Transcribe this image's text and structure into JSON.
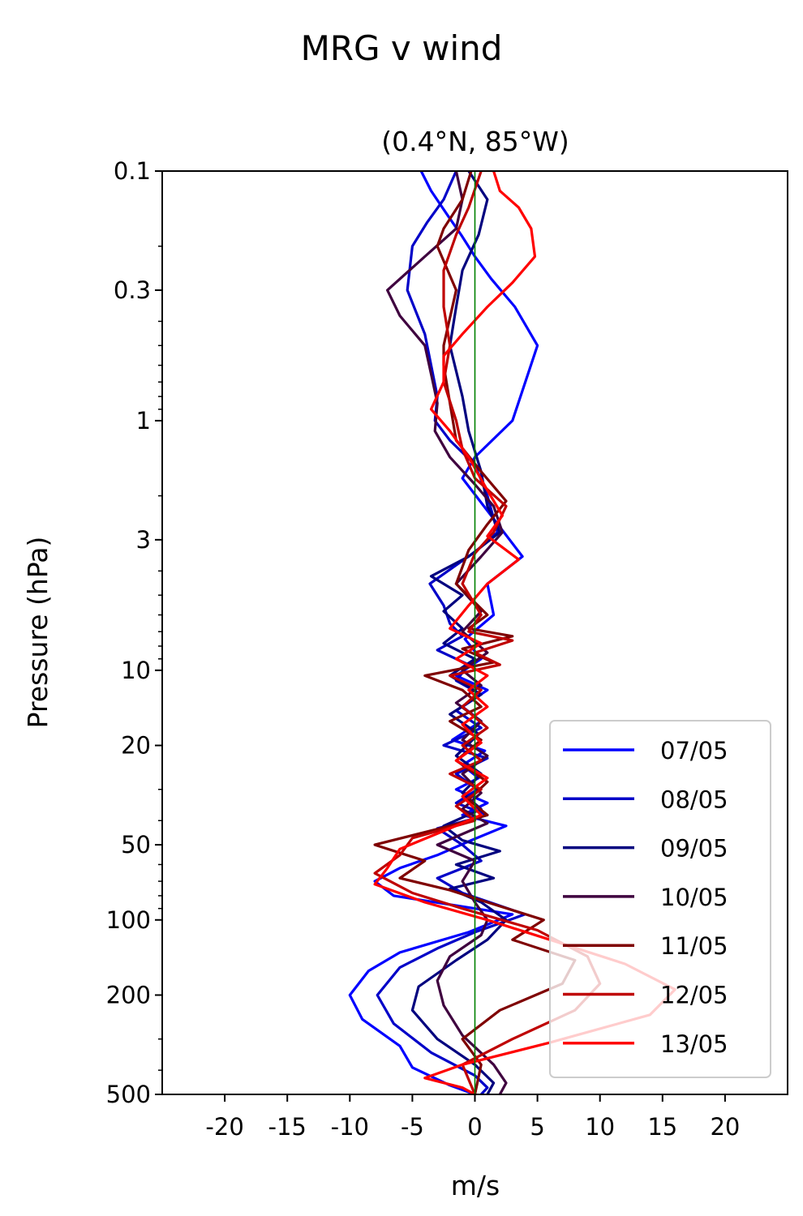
{
  "chart_data": {
    "type": "line",
    "title": "MRG v wind",
    "subtitle": "(0.4°N, 85°W)",
    "xlabel": "m/s",
    "ylabel": "Pressure (hPa)",
    "xlim": [
      -25,
      25
    ],
    "ylim": [
      500,
      0.1
    ],
    "y_scale": "log",
    "y_inverted": true,
    "xticks": [
      -20,
      -15,
      -10,
      -5,
      0,
      5,
      10,
      15,
      20
    ],
    "xtick_labels": [
      "-20",
      "-15",
      "-10",
      "-5",
      "0",
      "5",
      "10",
      "15",
      "20"
    ],
    "yticks": [
      0.1,
      0.3,
      1,
      3,
      10,
      20,
      50,
      100,
      200,
      500
    ],
    "ytick_labels": [
      "0.1",
      "0.3",
      "1",
      "3",
      "10",
      "20",
      "50",
      "100",
      "200",
      "500"
    ],
    "grid": false,
    "legend_position": "bottom-right",
    "reference_line": {
      "x": 0,
      "color": "#008000"
    },
    "series": [
      {
        "name": "07/05",
        "color": "#0000ff",
        "points": [
          [
            -4.3,
            0.1
          ],
          [
            -3.5,
            0.12
          ],
          [
            -2.2,
            0.15
          ],
          [
            -1.1,
            0.18
          ],
          [
            0.0,
            0.22
          ],
          [
            1.3,
            0.27
          ],
          [
            3.2,
            0.35
          ],
          [
            5.0,
            0.5
          ],
          [
            3.0,
            1.0
          ],
          [
            0.0,
            1.4
          ],
          [
            -1.0,
            1.7
          ],
          [
            1.3,
            2.4
          ],
          [
            3.8,
            3.5
          ],
          [
            1.0,
            4.5
          ],
          [
            1.5,
            6.0
          ],
          [
            -0.8,
            7.5
          ],
          [
            0.5,
            9.0
          ],
          [
            -1.5,
            10.5
          ],
          [
            1.0,
            12.0
          ],
          [
            -1.0,
            14.0
          ],
          [
            0.5,
            16.0
          ],
          [
            -1.8,
            19.0
          ],
          [
            0.8,
            21.0
          ],
          [
            -1.0,
            24.0
          ],
          [
            0.3,
            27.0
          ],
          [
            -1.5,
            30.0
          ],
          [
            1.0,
            34.0
          ],
          [
            -1.0,
            38.0
          ],
          [
            2.5,
            42.0
          ],
          [
            -0.3,
            48.0
          ],
          [
            -3.0,
            55.0
          ],
          [
            -6.0,
            62.0
          ],
          [
            -8.0,
            70.0
          ],
          [
            -6.5,
            80.0
          ],
          [
            3.0,
            95.0
          ],
          [
            -0.5,
            112.0
          ],
          [
            -6.0,
            135.0
          ],
          [
            -8.5,
            160.0
          ],
          [
            -10.0,
            200.0
          ],
          [
            -9.0,
            250.0
          ],
          [
            -6.0,
            320.0
          ],
          [
            -5.0,
            390.0
          ],
          [
            -2.0,
            460.0
          ],
          [
            0.0,
            500.0
          ]
        ]
      },
      {
        "name": "08/05",
        "color": "#0000c8",
        "points": [
          [
            -1.5,
            0.1
          ],
          [
            -2.5,
            0.13
          ],
          [
            -3.8,
            0.16
          ],
          [
            -5.0,
            0.2
          ],
          [
            -5.4,
            0.3
          ],
          [
            -4.0,
            0.45
          ],
          [
            -3.5,
            0.6
          ],
          [
            -3.0,
            0.8
          ],
          [
            -3.2,
            1.0
          ],
          [
            -2.0,
            1.2
          ],
          [
            0.0,
            1.5
          ],
          [
            1.0,
            2.0
          ],
          [
            1.8,
            2.8
          ],
          [
            0.2,
            3.3
          ],
          [
            -3.6,
            4.5
          ],
          [
            -2.5,
            5.5
          ],
          [
            -2.0,
            6.5
          ],
          [
            -1.0,
            7.3
          ],
          [
            -3.0,
            8.3
          ],
          [
            -0.5,
            9.5
          ],
          [
            -1.5,
            11.0
          ],
          [
            0.5,
            12.5
          ],
          [
            -1.5,
            14.5
          ],
          [
            0.5,
            17.0
          ],
          [
            -2.5,
            20.0
          ],
          [
            1.0,
            22.5
          ],
          [
            -1.5,
            26.0
          ],
          [
            0.2,
            30.0
          ],
          [
            -1.5,
            34.0
          ],
          [
            1.0,
            38.0
          ],
          [
            -3.0,
            43.0
          ],
          [
            -1.0,
            50.0
          ],
          [
            0.5,
            58.0
          ],
          [
            -3.0,
            68.0
          ],
          [
            -1.0,
            78.0
          ],
          [
            4.0,
            95.0
          ],
          [
            0.0,
            112.0
          ],
          [
            -3.0,
            130.0
          ],
          [
            -6.0,
            155.0
          ],
          [
            -7.8,
            200.0
          ],
          [
            -6.5,
            260.0
          ],
          [
            -3.5,
            340.0
          ],
          [
            0.0,
            420.0
          ],
          [
            1.0,
            470.0
          ],
          [
            0.5,
            500.0
          ]
        ]
      },
      {
        "name": "09/05",
        "color": "#00007f",
        "points": [
          [
            -0.5,
            0.1
          ],
          [
            1.0,
            0.13
          ],
          [
            0.3,
            0.18
          ],
          [
            -1.0,
            0.25
          ],
          [
            -1.5,
            0.35
          ],
          [
            -2.0,
            0.5
          ],
          [
            -1.0,
            0.8
          ],
          [
            -0.5,
            1.1
          ],
          [
            0.5,
            1.6
          ],
          [
            1.0,
            2.2
          ],
          [
            2.0,
            2.8
          ],
          [
            -0.5,
            3.5
          ],
          [
            -3.5,
            4.2
          ],
          [
            -1.0,
            5.0
          ],
          [
            -2.5,
            5.8
          ],
          [
            -1.0,
            6.8
          ],
          [
            -2.5,
            7.8
          ],
          [
            0.0,
            9.0
          ],
          [
            -2.0,
            10.5
          ],
          [
            0.5,
            12.5
          ],
          [
            -2.0,
            15.0
          ],
          [
            0.3,
            18.0
          ],
          [
            -1.5,
            22.0
          ],
          [
            0.5,
            26.0
          ],
          [
            -1.0,
            31.0
          ],
          [
            0.5,
            36.0
          ],
          [
            -2.5,
            42.0
          ],
          [
            -1.0,
            48.0
          ],
          [
            2.0,
            53.0
          ],
          [
            -1.5,
            60.0
          ],
          [
            1.5,
            68.0
          ],
          [
            -2.0,
            75.0
          ],
          [
            0.5,
            85.0
          ],
          [
            2.5,
            100.0
          ],
          [
            1.0,
            120.0
          ],
          [
            -1.5,
            145.0
          ],
          [
            -4.5,
            185.0
          ],
          [
            -5.0,
            230.0
          ],
          [
            -3.0,
            300.0
          ],
          [
            0.0,
            380.0
          ],
          [
            1.5,
            450.0
          ],
          [
            1.0,
            500.0
          ]
        ]
      },
      {
        "name": "10/05",
        "color": "#3f003f",
        "points": [
          [
            -1.5,
            0.1
          ],
          [
            -1.0,
            0.13
          ],
          [
            -1.5,
            0.17
          ],
          [
            -4.0,
            0.22
          ],
          [
            -7.0,
            0.3
          ],
          [
            -6.0,
            0.38
          ],
          [
            -4.0,
            0.5
          ],
          [
            -3.5,
            0.65
          ],
          [
            -3.0,
            0.85
          ],
          [
            -3.2,
            1.1
          ],
          [
            -2.0,
            1.4
          ],
          [
            0.0,
            1.8
          ],
          [
            1.5,
            2.2
          ],
          [
            2.2,
            2.8
          ],
          [
            0.5,
            3.5
          ],
          [
            -1.5,
            4.5
          ],
          [
            0.5,
            5.8
          ],
          [
            -1.0,
            7.0
          ],
          [
            1.0,
            8.5
          ],
          [
            -1.0,
            10.0
          ],
          [
            0.5,
            11.5
          ],
          [
            -1.5,
            13.5
          ],
          [
            0.5,
            16.0
          ],
          [
            -1.0,
            19.0
          ],
          [
            1.0,
            22.0
          ],
          [
            -1.0,
            26.0
          ],
          [
            0.5,
            31.0
          ],
          [
            -1.0,
            36.0
          ],
          [
            1.0,
            41.0
          ],
          [
            -3.0,
            50.0
          ],
          [
            0.0,
            58.0
          ],
          [
            -1.0,
            70.0
          ],
          [
            0.0,
            85.0
          ],
          [
            1.0,
            100.0
          ],
          [
            0.5,
            115.0
          ],
          [
            -2.0,
            140.0
          ],
          [
            -3.0,
            175.0
          ],
          [
            -2.5,
            220.0
          ],
          [
            -1.0,
            290.0
          ],
          [
            1.5,
            380.0
          ],
          [
            2.5,
            450.0
          ],
          [
            2.0,
            500.0
          ]
        ]
      },
      {
        "name": "11/05",
        "color": "#7f0000",
        "points": [
          [
            -0.3,
            0.1
          ],
          [
            -1.0,
            0.13
          ],
          [
            -2.5,
            0.17
          ],
          [
            -3.0,
            0.2
          ],
          [
            -1.5,
            0.3
          ],
          [
            -2.5,
            0.5
          ],
          [
            -2.5,
            0.6
          ],
          [
            -2.0,
            0.85
          ],
          [
            -1.5,
            1.2
          ],
          [
            0.5,
            1.6
          ],
          [
            2.5,
            2.1
          ],
          [
            1.0,
            2.6
          ],
          [
            -0.5,
            3.3
          ],
          [
            -1.5,
            4.5
          ],
          [
            1.0,
            6.0
          ],
          [
            -0.5,
            6.8
          ],
          [
            3.0,
            7.3
          ],
          [
            -1.0,
            8.2
          ],
          [
            1.5,
            9.3
          ],
          [
            -4.0,
            10.5
          ],
          [
            -1.0,
            12.0
          ],
          [
            0.5,
            14.0
          ],
          [
            -2.0,
            16.0
          ],
          [
            0.5,
            19.0
          ],
          [
            -1.5,
            23.0
          ],
          [
            1.0,
            28.0
          ],
          [
            -0.5,
            33.0
          ],
          [
            1.0,
            38.0
          ],
          [
            -2.0,
            42.0
          ],
          [
            -8.0,
            50.0
          ],
          [
            -4.0,
            58.0
          ],
          [
            -6.0,
            68.0
          ],
          [
            -2.0,
            76.0
          ],
          [
            1.0,
            85.0
          ],
          [
            5.5,
            100.0
          ],
          [
            3.0,
            120.0
          ],
          [
            8.0,
            145.0
          ],
          [
            7.0,
            180.0
          ],
          [
            2.0,
            230.0
          ],
          [
            -1.0,
            300.0
          ],
          [
            0.5,
            380.0
          ],
          [
            0.0,
            500.0
          ]
        ]
      },
      {
        "name": "12/05",
        "color": "#bf0000",
        "points": [
          [
            0.5,
            0.1
          ],
          [
            -0.5,
            0.14
          ],
          [
            -1.5,
            0.18
          ],
          [
            -2.5,
            0.25
          ],
          [
            -2.5,
            0.35
          ],
          [
            -2.0,
            0.5
          ],
          [
            -2.5,
            0.7
          ],
          [
            -1.5,
            1.0
          ],
          [
            -1.0,
            1.3
          ],
          [
            0.0,
            1.7
          ],
          [
            2.5,
            2.2
          ],
          [
            1.5,
            2.8
          ],
          [
            0.0,
            3.4
          ],
          [
            -1.0,
            4.5
          ],
          [
            0.5,
            6.0
          ],
          [
            -0.5,
            7.0
          ],
          [
            3.0,
            7.6
          ],
          [
            0.0,
            8.5
          ],
          [
            2.0,
            9.5
          ],
          [
            -2.0,
            10.5
          ],
          [
            0.5,
            12.0
          ],
          [
            -1.0,
            14.0
          ],
          [
            1.0,
            17.0
          ],
          [
            -1.0,
            20.0
          ],
          [
            0.5,
            23.0
          ],
          [
            -2.0,
            26.0
          ],
          [
            0.5,
            30.0
          ],
          [
            -1.5,
            35.0
          ],
          [
            0.0,
            40.0
          ],
          [
            -5.0,
            47.0
          ],
          [
            -6.0,
            55.0
          ],
          [
            -8.0,
            65.0
          ],
          [
            -5.0,
            78.0
          ],
          [
            -1.0,
            90.0
          ],
          [
            5.0,
            110.0
          ],
          [
            9.0,
            140.0
          ],
          [
            10.0,
            180.0
          ],
          [
            8.0,
            230.0
          ],
          [
            3.0,
            300.0
          ],
          [
            -1.0,
            380.0
          ],
          [
            0.0,
            500.0
          ]
        ]
      },
      {
        "name": "13/05",
        "color": "#ff0000",
        "points": [
          [
            1.5,
            0.1
          ],
          [
            2.0,
            0.12
          ],
          [
            3.5,
            0.14
          ],
          [
            4.5,
            0.17
          ],
          [
            4.8,
            0.22
          ],
          [
            3.0,
            0.28
          ],
          [
            1.0,
            0.35
          ],
          [
            -1.0,
            0.45
          ],
          [
            -2.5,
            0.55
          ],
          [
            -2.5,
            0.7
          ],
          [
            -3.5,
            0.9
          ],
          [
            -2.0,
            1.1
          ],
          [
            -0.5,
            1.4
          ],
          [
            1.0,
            1.9
          ],
          [
            2.2,
            2.4
          ],
          [
            1.0,
            2.9
          ],
          [
            3.5,
            3.6
          ],
          [
            1.0,
            4.5
          ],
          [
            -0.5,
            5.5
          ],
          [
            -2.0,
            6.8
          ],
          [
            0.5,
            7.8
          ],
          [
            -1.5,
            9.0
          ],
          [
            1.0,
            10.5
          ],
          [
            -0.5,
            12.0
          ],
          [
            1.0,
            14.0
          ],
          [
            -1.0,
            16.5
          ],
          [
            0.5,
            19.5
          ],
          [
            -1.5,
            23.0
          ],
          [
            1.0,
            27.0
          ],
          [
            -1.0,
            32.0
          ],
          [
            0.5,
            38.0
          ],
          [
            -2.0,
            43.0
          ],
          [
            -6.0,
            52.0
          ],
          [
            -7.0,
            62.0
          ],
          [
            -8.0,
            72.0
          ],
          [
            -4.0,
            85.0
          ],
          [
            1.0,
            100.0
          ],
          [
            6.0,
            120.0
          ],
          [
            12.0,
            150.0
          ],
          [
            16.0,
            190.0
          ],
          [
            14.0,
            240.0
          ],
          [
            6.0,
            310.0
          ],
          [
            -1.0,
            380.0
          ],
          [
            -4.0,
            430.0
          ],
          [
            -1.0,
            470.0
          ],
          [
            0.0,
            500.0
          ]
        ]
      }
    ]
  }
}
